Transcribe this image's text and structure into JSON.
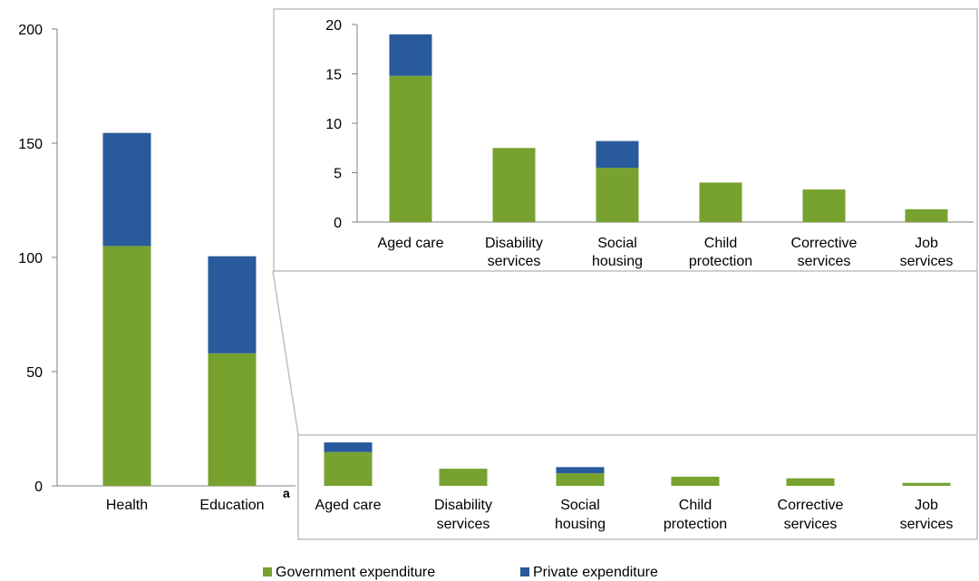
{
  "colors": {
    "government": "#77a22f",
    "private": "#285a9c",
    "axis": "#7f7f7f",
    "frame": "#bfbfbf"
  },
  "legend": {
    "government": "Government expenditure",
    "private": "Private expenditure"
  },
  "chart_data": [
    {
      "type": "bar",
      "stacked": true,
      "categories": [
        [
          "Health"
        ],
        [
          "Education"
        ],
        [
          "Aged care"
        ],
        [
          "Disability",
          "services"
        ],
        [
          "Social",
          "housing"
        ],
        [
          "Child",
          "protection"
        ],
        [
          "Corrective",
          "services"
        ],
        [
          "Job",
          "services"
        ]
      ],
      "category_notes": [
        "",
        "a",
        "",
        "",
        "",
        "",
        "",
        ""
      ],
      "series": [
        {
          "name": "Government expenditure",
          "values": [
            105,
            58,
            14.8,
            7.5,
            5.5,
            4.0,
            3.3,
            1.3
          ]
        },
        {
          "name": "Private expenditure",
          "values": [
            49.5,
            42.5,
            4.2,
            0,
            2.7,
            0,
            0,
            0
          ]
        }
      ],
      "ylim": [
        0,
        200
      ],
      "yticks": [
        0,
        50,
        100,
        150,
        200
      ],
      "legend_position": "bottom-center"
    },
    {
      "type": "bar",
      "stacked": true,
      "inset": true,
      "categories": [
        [
          "Aged care"
        ],
        [
          "Disability",
          "services"
        ],
        [
          "Social",
          "housing"
        ],
        [
          "Child",
          "protection"
        ],
        [
          "Corrective",
          "services"
        ],
        [
          "Job",
          "services"
        ]
      ],
      "series": [
        {
          "name": "Government expenditure",
          "values": [
            14.8,
            7.5,
            5.5,
            4.0,
            3.3,
            1.3
          ]
        },
        {
          "name": "Private expenditure",
          "values": [
            4.2,
            0,
            2.7,
            0,
            0,
            0
          ]
        }
      ],
      "ylim": [
        0,
        20
      ],
      "yticks": [
        0,
        5,
        10,
        15,
        20
      ]
    }
  ]
}
